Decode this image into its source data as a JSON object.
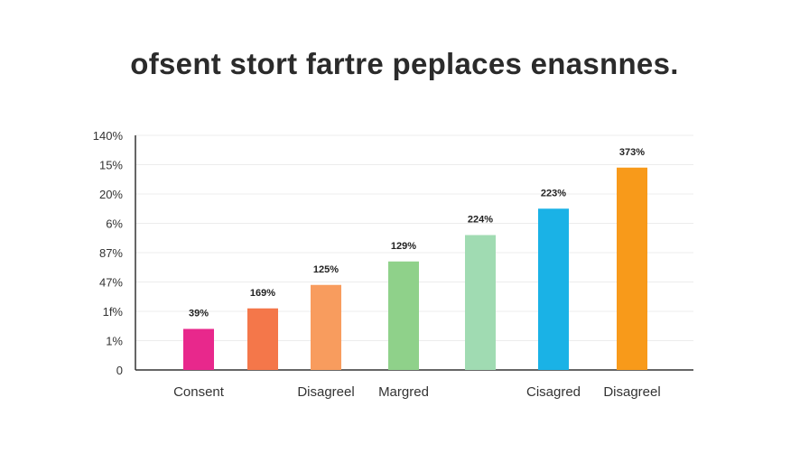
{
  "chart_data": {
    "type": "bar",
    "title": "ofsent stort fartre peplaces enasnnes.",
    "xlabel": "",
    "ylabel": "",
    "y_tick_labels": [
      "0",
      "1%",
      "1f%",
      "47%",
      "87%",
      "6%",
      "20%",
      "15%",
      "140%"
    ],
    "grid": true,
    "categories": [
      "Consent",
      "",
      "Disagreel",
      "Margred",
      "",
      "Cisagred",
      "Disagreel"
    ],
    "values": [
      1.4,
      2.1,
      2.9,
      3.7,
      4.6,
      5.5,
      6.9
    ],
    "ylim": [
      0,
      8
    ],
    "data_labels": [
      "39%",
      "169%",
      "125%",
      "129%",
      "224%",
      "223%",
      "373%"
    ],
    "colors": [
      "#e8288c",
      "#f4774a",
      "#f89c5e",
      "#8fd18a",
      "#a0dbb2",
      "#1ab2e6",
      "#f89a1a"
    ]
  }
}
